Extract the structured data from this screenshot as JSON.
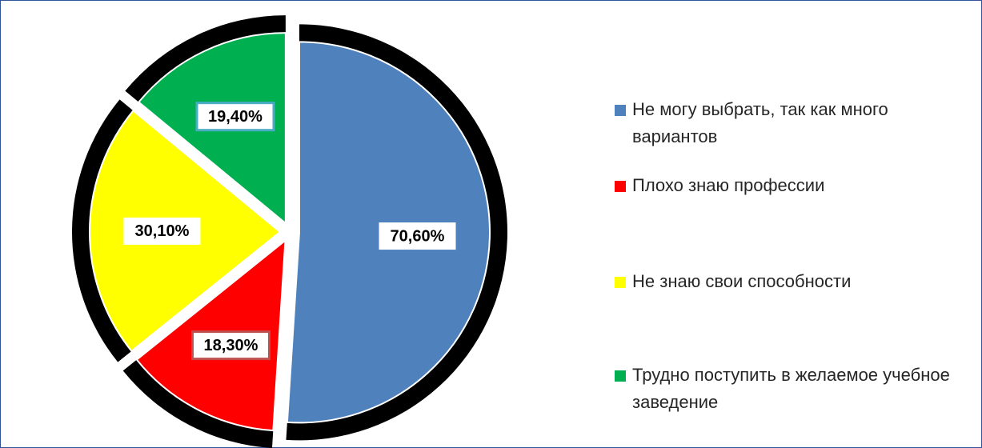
{
  "chart_data": {
    "type": "pie",
    "categories": [
      "Не могу выбрать, так как много вариантов",
      "Плохо знаю профессии",
      "Не знаю свои способности",
      "Трудно поступить в желаемое учебное заведение"
    ],
    "values": [
      70.6,
      18.3,
      30.1,
      19.4
    ],
    "value_labels": [
      "70,60%",
      "18,30%",
      "30,10%",
      "19,40%"
    ],
    "colors": [
      "#4f81bd",
      "#ff0000",
      "#ffff00",
      "#00b050"
    ]
  }
}
